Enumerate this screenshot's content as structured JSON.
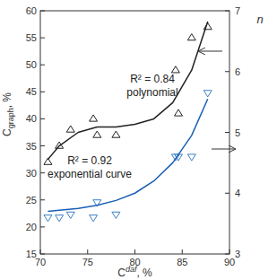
{
  "chart_data": {
    "type": "scatter",
    "xlabel": {
      "base": "C",
      "sup": "daf",
      "tail": ", %"
    },
    "ylabel": {
      "base": "C",
      "sub": "graph",
      "tail": ", %"
    },
    "y2label": "n",
    "xlim": [
      70,
      90
    ],
    "xticks": [
      70,
      75,
      80,
      85,
      90
    ],
    "ylim": [
      15,
      60
    ],
    "yticks": [
      15,
      20,
      25,
      30,
      35,
      40,
      45,
      50,
      55,
      60
    ],
    "y2lim": [
      3,
      7
    ],
    "y2ticks": [
      3,
      4,
      5,
      6,
      7
    ],
    "grid": false,
    "annotations": [
      "R² = 0.84",
      "R² = 0.92"
    ],
    "series": [
      {
        "type": "scatter",
        "marker": "triangle-up",
        "color": "#222222",
        "x": [
          70.8,
          72,
          73.2,
          75.6,
          76,
          78,
          84.3,
          84.6,
          86,
          87.7
        ],
        "values": [
          32,
          35,
          38,
          40,
          37,
          37,
          49,
          41,
          55,
          57
        ]
      },
      {
        "type": "scatter",
        "marker": "triangle-down",
        "color": "#3a7fc4",
        "axis": "y2",
        "x": [
          70.8,
          72,
          73.2,
          75.6,
          76,
          78,
          84.3,
          84.6,
          86,
          87.7
        ],
        "values": [
          3.6,
          3.6,
          3.65,
          3.6,
          3.85,
          3.65,
          4.6,
          4.6,
          4.6,
          5.65
        ]
      },
      {
        "name": "polynomial",
        "type": "line",
        "line_style": "solid",
        "color": "#222222",
        "x": [
          70.8,
          72,
          74,
          76,
          78,
          80,
          82,
          84,
          86,
          87.7
        ],
        "values": [
          32.5,
          35,
          37.5,
          38.5,
          38.5,
          39,
          40,
          43,
          49,
          58
        ]
      },
      {
        "name": "exponential curve",
        "type": "line",
        "line_style": "solid",
        "color": "#1a5fb4",
        "axis": "y2",
        "x": [
          70.8,
          72,
          74,
          76,
          78,
          80,
          82,
          84,
          86,
          87.7
        ],
        "values": [
          3.7,
          3.72,
          3.75,
          3.8,
          3.88,
          4.0,
          4.2,
          4.5,
          4.95,
          5.55
        ]
      }
    ]
  }
}
